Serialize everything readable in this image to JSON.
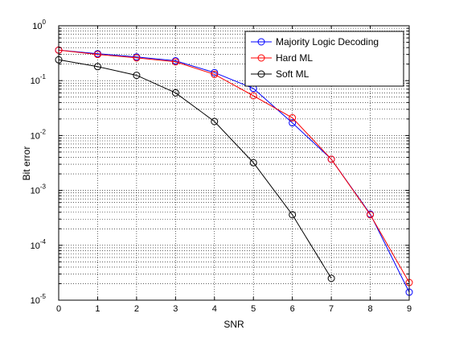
{
  "chart_data": {
    "type": "line",
    "title": "",
    "xlabel": "SNR",
    "ylabel": "Bit error",
    "x": [
      0,
      1,
      2,
      3,
      4,
      5,
      6,
      7,
      8,
      9
    ],
    "xlim": [
      0,
      9
    ],
    "xticks": [
      "0",
      "1",
      "2",
      "3",
      "4",
      "5",
      "6",
      "7",
      "8",
      "9"
    ],
    "ylim": [
      1e-05,
      1
    ],
    "yscale": "log",
    "yticks": [
      {
        "base": "10",
        "exp": "0"
      },
      {
        "base": "10",
        "exp": "-1"
      },
      {
        "base": "10",
        "exp": "-2"
      },
      {
        "base": "10",
        "exp": "-3"
      },
      {
        "base": "10",
        "exp": "-4"
      },
      {
        "base": "10",
        "exp": "-5"
      }
    ],
    "grid": true,
    "legend_position": "top-right",
    "series": [
      {
        "name": "Majority Logic Decoding",
        "color": "#0000ff",
        "marker": "circle",
        "x": [
          0,
          1,
          2,
          3,
          4,
          5,
          6,
          7,
          8,
          9
        ],
        "values": [
          0.36,
          0.31,
          0.27,
          0.23,
          0.14,
          0.072,
          0.017,
          0.0037,
          0.00037,
          1.4e-05
        ]
      },
      {
        "name": "Hard ML",
        "color": "#ff0000",
        "marker": "circle",
        "x": [
          0,
          1,
          2,
          3,
          4,
          5,
          6,
          7,
          8,
          9
        ],
        "values": [
          0.36,
          0.3,
          0.26,
          0.22,
          0.13,
          0.053,
          0.021,
          0.0037,
          0.00036,
          2.1e-05
        ]
      },
      {
        "name": "Soft ML",
        "color": "#000000",
        "marker": "circle",
        "x": [
          0,
          1,
          2,
          3,
          4,
          5,
          6,
          7
        ],
        "values": [
          0.24,
          0.18,
          0.125,
          0.06,
          0.018,
          0.0032,
          0.00036,
          2.5e-05
        ]
      }
    ]
  }
}
